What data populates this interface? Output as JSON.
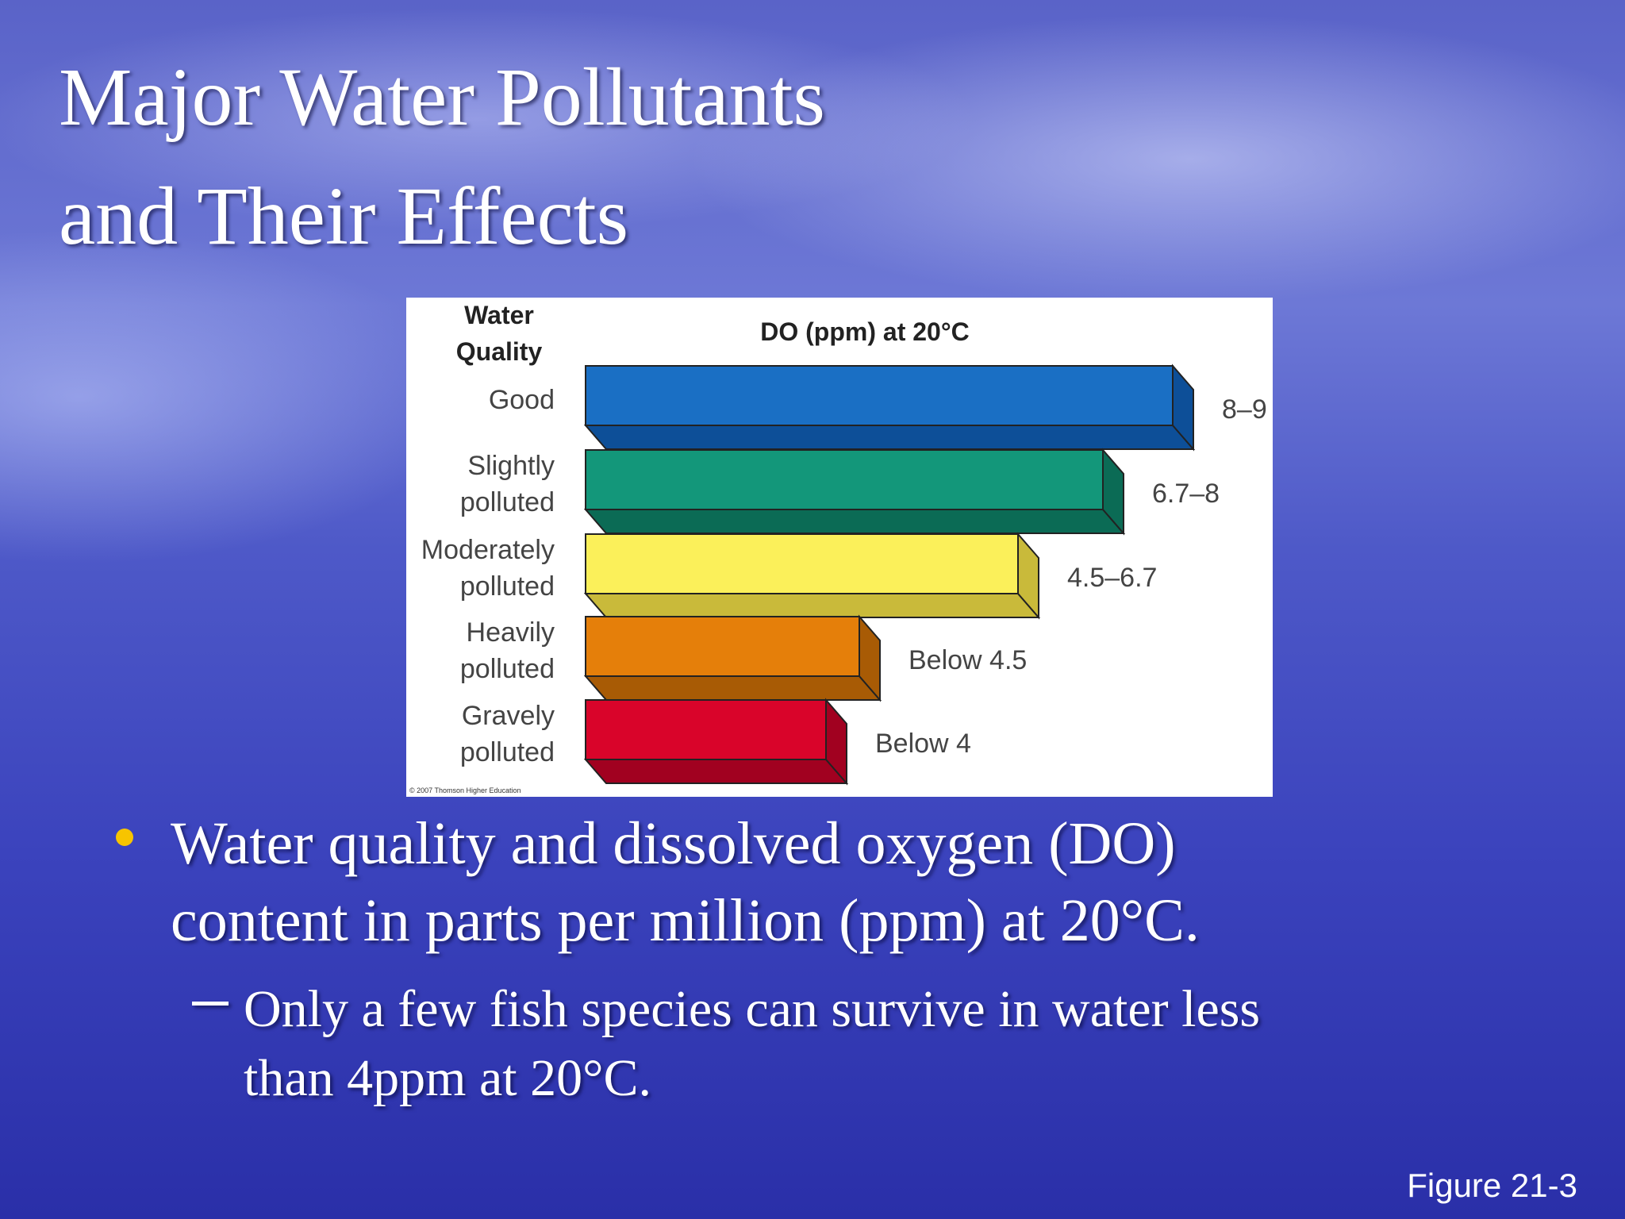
{
  "slide": {
    "title": [
      "Major Water Pollutants",
      "and Their Effects"
    ],
    "figure": {
      "header_quality": [
        "Water",
        "Quality"
      ],
      "header_do": "DO (ppm) at 20°C",
      "rows": [
        {
          "quality": [
            "Good"
          ],
          "do": "8–9"
        },
        {
          "quality": [
            "Slightly",
            "polluted"
          ],
          "do": "6.7–8"
        },
        {
          "quality": [
            "Moderately",
            "polluted"
          ],
          "do": "4.5–6.7"
        },
        {
          "quality": [
            "Heavily",
            "polluted"
          ],
          "do": "Below 4.5"
        },
        {
          "quality": [
            "Gravely",
            "polluted"
          ],
          "do": "Below 4"
        }
      ],
      "credit": "© 2007 Thomson Higher Education"
    },
    "bullet": [
      "Water quality and dissolved oxygen (DO)",
      "content in parts per million (ppm) at 20°C."
    ],
    "sub_bullet": [
      "Only a few fish species can survive in water less",
      "than 4ppm at 20°C."
    ],
    "figure_ref": "Figure 21-3"
  }
}
